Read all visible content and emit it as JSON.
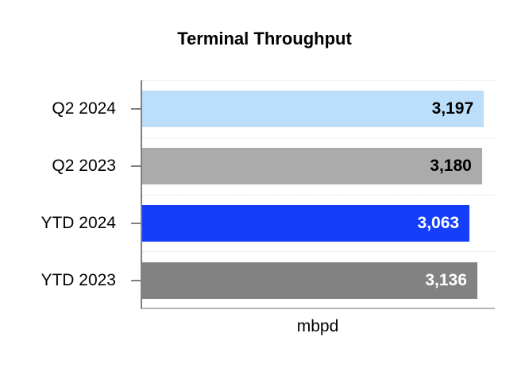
{
  "chart_data": {
    "type": "bar",
    "orientation": "horizontal",
    "title": "Terminal Throughput",
    "xlabel": "mbpd",
    "categories": [
      "Q2 2024",
      "Q2 2023",
      "YTD 2024",
      "YTD 2023"
    ],
    "values": [
      3197,
      3180,
      3063,
      3136
    ],
    "value_labels": [
      "3,197",
      "3,180",
      "3,063",
      "3,136"
    ],
    "bar_colors": [
      "#BBDEFA",
      "#ABABAB",
      "#143EFA",
      "#828282"
    ],
    "value_label_colors": [
      "#000000",
      "#000000",
      "#FFFFFF",
      "#FFFFFF"
    ],
    "xlim": [
      0,
      3300
    ],
    "legend": false,
    "grid": "faint dotted horizontal row boundaries",
    "axis_color": "#7F7F7F",
    "baseline_color": "#B3B3B3",
    "background": "#FFFFFF"
  }
}
